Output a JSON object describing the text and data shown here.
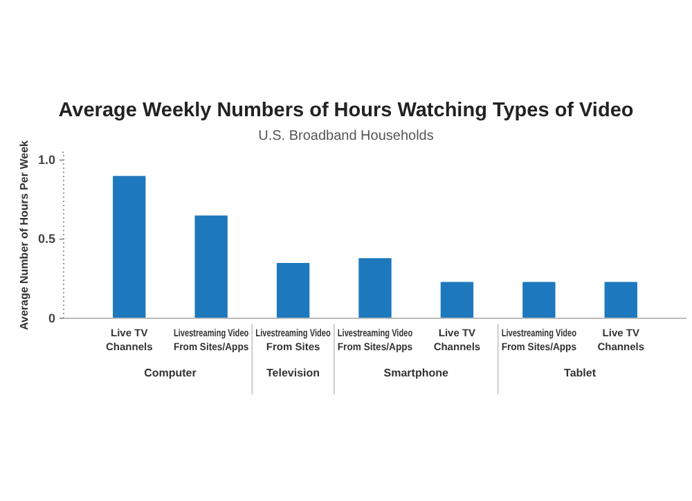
{
  "chart_data": {
    "type": "bar",
    "title": "Average Weekly Numbers of Hours Watching Types of Video",
    "subtitle": "U.S. Broadband Households",
    "ylabel": "Average Number of Hours Per Week",
    "categories": [
      "Live TV\nChannels",
      "Livestreaming Video\nFrom Sites/Apps",
      "Livestreaming Video\nFrom Sites",
      "Livestreaming Video\nFrom Sites/Apps",
      "Live TV\nChannels",
      "Livestreaming Video\nFrom Sites/Apps",
      "Live TV\nChannels"
    ],
    "values": [
      0.9,
      0.65,
      0.35,
      0.38,
      0.23,
      0.23,
      0.23
    ],
    "color": "#1e78be",
    "ylim": [
      0,
      1.05
    ],
    "yticks": [
      0,
      {
        "value": 0.5,
        "label": "0.5"
      },
      {
        "value": 1,
        "label": "1.0"
      }
    ],
    "grid": false,
    "annotations": [
      "Computer",
      "Television",
      "Smartphone",
      "Tablet"
    ]
  }
}
